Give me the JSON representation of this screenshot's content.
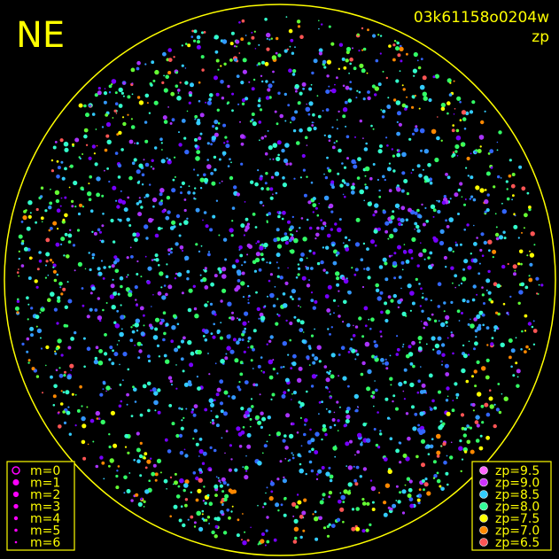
{
  "header": {
    "corner": "NE",
    "image_id": "03k61158o0204w",
    "subtitle": "zp"
  },
  "magnitude_legend": {
    "color": "#ff00ff",
    "items": [
      "m=0",
      "m=1",
      "m=2",
      "m=3",
      "m=4",
      "m=5",
      "m=6"
    ]
  },
  "zp_legend": {
    "items": [
      {
        "label": "zp=9.5",
        "color": "#ff66ff"
      },
      {
        "label": "zp=9.0",
        "color": "#cc33ff"
      },
      {
        "label": "zp=8.5",
        "color": "#33ccff"
      },
      {
        "label": "zp=8.0",
        "color": "#33ff99"
      },
      {
        "label": "zp=7.5",
        "color": "#ffff00"
      },
      {
        "label": "zp=7.0",
        "color": "#ff8800"
      },
      {
        "label": "zp=6.5",
        "color": "#ff5555"
      }
    ]
  }
}
